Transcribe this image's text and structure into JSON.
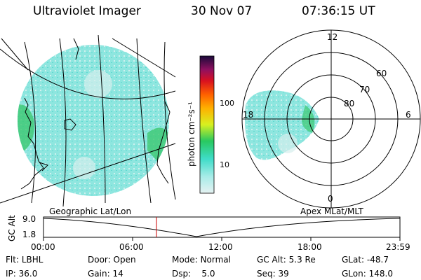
{
  "header": {
    "instrument": "Ultraviolet Imager",
    "date": "30 Nov 07",
    "time": "07:36:15 UT"
  },
  "colorbar": {
    "unit_label": "photon cm⁻²s⁻¹",
    "ticks": [
      "100",
      "10"
    ]
  },
  "polar": {
    "mlt_labels": [
      "12",
      "18",
      "6",
      "0"
    ],
    "lat_labels": [
      "60",
      "70",
      "80"
    ]
  },
  "timeline": {
    "left_title": "Geographic Lat/Lon",
    "right_title": "Apex MLat/MLT",
    "axis_label": "GC Alt",
    "y_ticks": [
      "9.0",
      "1.8"
    ],
    "x_ticks": [
      "00:00",
      "06:00",
      "12:00",
      "18:00",
      "23:59"
    ],
    "current_time_fraction": 0.317
  },
  "status": {
    "row1": [
      {
        "label": "Flt:",
        "value": "LBHL"
      },
      {
        "label": "Door:",
        "value": "Open"
      },
      {
        "label": "Mode:",
        "value": "Normal"
      },
      {
        "label": "GC Alt:",
        "value": "5.3 Re"
      },
      {
        "label": "GLat:",
        "value": "-48.7"
      }
    ],
    "row2": [
      {
        "label": "IP:",
        "value": "36.0"
      },
      {
        "label": "Gain:",
        "value": "14"
      },
      {
        "label": "Dsp:",
        "value": "5.0"
      },
      {
        "label": "Seq:",
        "value": "39"
      },
      {
        "label": "GLon:",
        "value": "148.0"
      }
    ]
  },
  "colors": {
    "aurora_main": "#7fe8de",
    "aurora_bright": "#2ec46a",
    "marker": "#cc0000"
  }
}
